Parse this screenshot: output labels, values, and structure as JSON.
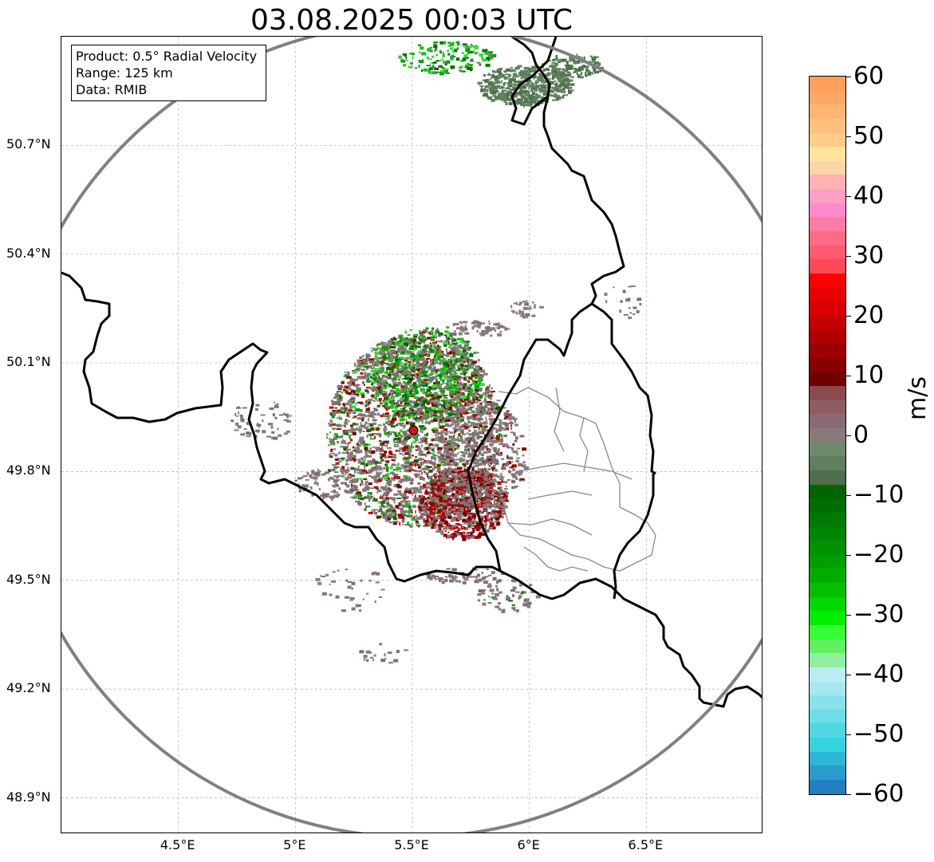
{
  "title": "03.08.2025 00:03 UTC",
  "info": {
    "product": "Product: 0.5° Radial Velocity",
    "range": "Range: 125 km",
    "data": "Data: RMIB"
  },
  "map": {
    "lon_range": [
      4.0,
      7.0
    ],
    "lat_range": [
      48.8,
      51.0
    ],
    "lat_ticks": [
      {
        "value": 48.9,
        "label": "48.9°N"
      },
      {
        "value": 49.2,
        "label": "49.2°N"
      },
      {
        "value": 49.5,
        "label": "49.5°N"
      },
      {
        "value": 49.8,
        "label": "49.8°N"
      },
      {
        "value": 50.1,
        "label": "50.1°N"
      },
      {
        "value": 50.4,
        "label": "50.4°N"
      },
      {
        "value": 50.7,
        "label": "50.7°N"
      }
    ],
    "lon_ticks": [
      {
        "value": 4.5,
        "label": "4.5°E"
      },
      {
        "value": 5.0,
        "label": "5°E"
      },
      {
        "value": 5.5,
        "label": "5.5°E"
      },
      {
        "value": 6.0,
        "label": "6°E"
      },
      {
        "value": 6.5,
        "label": "6.5°E"
      }
    ],
    "radar_site": {
      "lon": 5.505,
      "lat": 49.914,
      "color": "#e01010"
    },
    "range_ring_color": "#808080",
    "grid": true
  },
  "colorbar": {
    "unit": "m/s",
    "min": -60,
    "max": 60,
    "ticks": [
      {
        "value": 60,
        "label": "60"
      },
      {
        "value": 50,
        "label": "50"
      },
      {
        "value": 40,
        "label": "40"
      },
      {
        "value": 30,
        "label": "30"
      },
      {
        "value": 20,
        "label": "20"
      },
      {
        "value": 10,
        "label": "10"
      },
      {
        "value": 0,
        "label": "0"
      },
      {
        "value": -10,
        "label": "−10"
      },
      {
        "value": -20,
        "label": "−20"
      },
      {
        "value": -30,
        "label": "−30"
      },
      {
        "value": -40,
        "label": "−40"
      },
      {
        "value": -50,
        "label": "−50"
      },
      {
        "value": -60,
        "label": "−60"
      }
    ],
    "colors_top_to_bottom": [
      "#ff9f5a",
      "#ffa866",
      "#ffb574",
      "#ffc07e",
      "#ffcc8a",
      "#ffe49c",
      "#ffd4a8",
      "#ffb2b2",
      "#ff9ec4",
      "#ff8acc",
      "#ff7aa6",
      "#ff6a88",
      "#ff5a70",
      "#ff4858",
      "#ff0000",
      "#e80000",
      "#d80000",
      "#c40000",
      "#b00000",
      "#9c0000",
      "#880000",
      "#700000",
      "#8a4a4e",
      "#8e5c62",
      "#8a6a74",
      "#887a7a",
      "#6e8a6e",
      "#5e7e5e",
      "#4e6e4e",
      "#006400",
      "#006e00",
      "#007a00",
      "#008600",
      "#009200",
      "#009e00",
      "#00ac00",
      "#00c000",
      "#00d800",
      "#00ee00",
      "#33ff33",
      "#60f060",
      "#90f0a0",
      "#b8eef0",
      "#a4e8ee",
      "#88e2ea",
      "#6ddde6",
      "#50d8e2",
      "#34d4de",
      "#2eb6d6",
      "#2a9ccc",
      "#1f7fc0"
    ]
  }
}
